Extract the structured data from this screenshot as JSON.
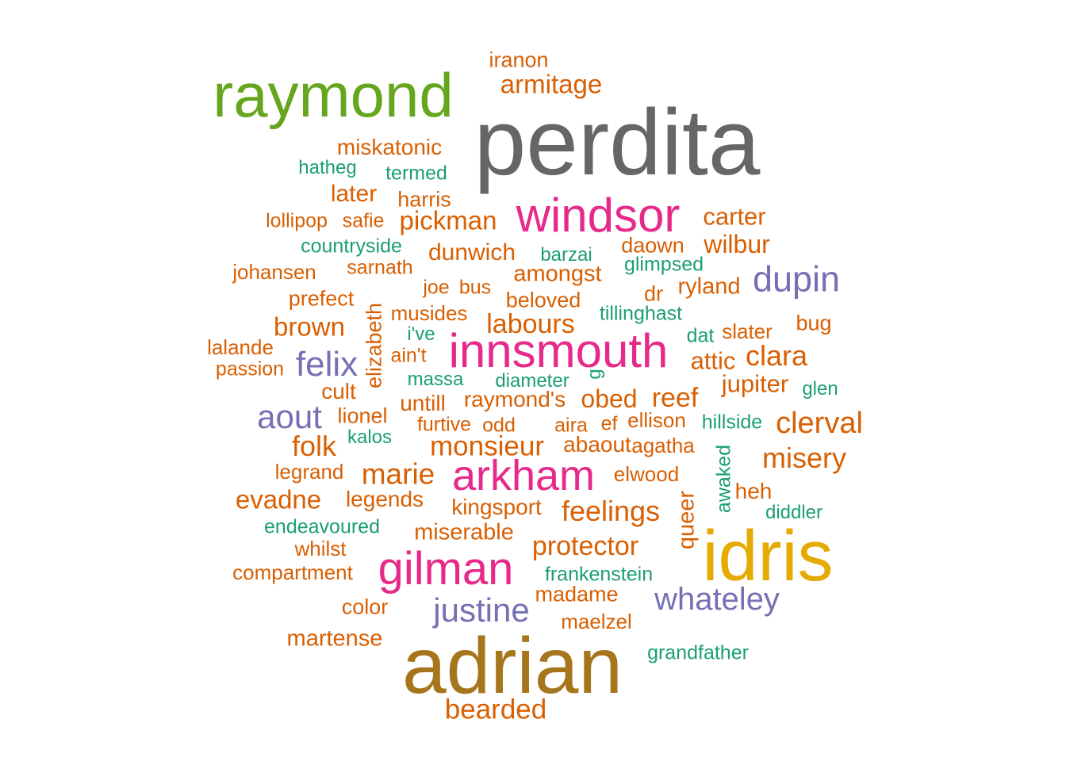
{
  "chart_data": {
    "type": "wordcloud",
    "colors": {
      "orange": "#d95f02",
      "teal": "#1b9e77",
      "purple": "#7570b3",
      "magenta": "#e7298a",
      "green": "#66a61e",
      "gold": "#e6ab02",
      "brown": "#a6761d",
      "gray": "#666666"
    },
    "words": [
      {
        "text": "perdita",
        "weight": 10,
        "color": "gray",
        "vertical": false
      },
      {
        "text": "adrian",
        "weight": 8.6,
        "color": "brown",
        "vertical": false
      },
      {
        "text": "idris",
        "weight": 8.1,
        "color": "gold",
        "vertical": false
      },
      {
        "text": "raymond",
        "weight": 7.5,
        "color": "green",
        "vertical": false
      },
      {
        "text": "windsor",
        "weight": 6.4,
        "color": "magenta",
        "vertical": false
      },
      {
        "text": "innsmouth",
        "weight": 6.4,
        "color": "magenta",
        "vertical": false
      },
      {
        "text": "gilman",
        "weight": 6.2,
        "color": "magenta",
        "vertical": false
      },
      {
        "text": "arkham",
        "weight": 5.8,
        "color": "magenta",
        "vertical": false
      },
      {
        "text": "dupin",
        "weight": 4.9,
        "color": "purple",
        "vertical": false
      },
      {
        "text": "felix",
        "weight": 4.8,
        "color": "purple",
        "vertical": false
      },
      {
        "text": "aout",
        "weight": 4.6,
        "color": "purple",
        "vertical": false
      },
      {
        "text": "justine",
        "weight": 4.6,
        "color": "purple",
        "vertical": false
      },
      {
        "text": "whateley",
        "weight": 4.3,
        "color": "purple",
        "vertical": false
      },
      {
        "text": "clerval",
        "weight": 4.1,
        "color": "orange",
        "vertical": false
      },
      {
        "text": "misery",
        "weight": 4.0,
        "color": "orange",
        "vertical": false
      },
      {
        "text": "folk",
        "weight": 4.0,
        "color": "orange",
        "vertical": false
      },
      {
        "text": "marie",
        "weight": 4.0,
        "color": "orange",
        "vertical": false
      },
      {
        "text": "clara",
        "weight": 3.9,
        "color": "orange",
        "vertical": false
      },
      {
        "text": "feelings",
        "weight": 3.9,
        "color": "orange",
        "vertical": false
      },
      {
        "text": "bearded",
        "weight": 3.8,
        "color": "orange",
        "vertical": false
      },
      {
        "text": "monsieur",
        "weight": 3.8,
        "color": "orange",
        "vertical": false
      },
      {
        "text": "protector",
        "weight": 3.7,
        "color": "orange",
        "vertical": false
      },
      {
        "text": "labours",
        "weight": 3.7,
        "color": "orange",
        "vertical": false
      },
      {
        "text": "reef",
        "weight": 3.7,
        "color": "orange",
        "vertical": false
      },
      {
        "text": "armitage",
        "weight": 3.6,
        "color": "orange",
        "vertical": false
      },
      {
        "text": "pickman",
        "weight": 3.6,
        "color": "orange",
        "vertical": false
      },
      {
        "text": "evadne",
        "weight": 3.6,
        "color": "orange",
        "vertical": false
      },
      {
        "text": "wilbur",
        "weight": 3.5,
        "color": "orange",
        "vertical": false
      },
      {
        "text": "brown",
        "weight": 3.5,
        "color": "orange",
        "vertical": false
      },
      {
        "text": "obed",
        "weight": 3.5,
        "color": "orange",
        "vertical": false
      },
      {
        "text": "carter",
        "weight": 3.4,
        "color": "orange",
        "vertical": false
      },
      {
        "text": "dunwich",
        "weight": 3.4,
        "color": "orange",
        "vertical": false
      },
      {
        "text": "jupiter",
        "weight": 3.4,
        "color": "orange",
        "vertical": false
      },
      {
        "text": "attic",
        "weight": 3.4,
        "color": "orange",
        "vertical": false
      },
      {
        "text": "later",
        "weight": 3.3,
        "color": "orange",
        "vertical": false
      },
      {
        "text": "amongst",
        "weight": 3.3,
        "color": "orange",
        "vertical": false
      },
      {
        "text": "ryland",
        "weight": 3.3,
        "color": "orange",
        "vertical": false
      },
      {
        "text": "martense",
        "weight": 3.3,
        "color": "orange",
        "vertical": false
      },
      {
        "text": "miserable",
        "weight": 3.3,
        "color": "orange",
        "vertical": false
      },
      {
        "text": "kingsport",
        "weight": 3.2,
        "color": "orange",
        "vertical": false
      },
      {
        "text": "legends",
        "weight": 3.2,
        "color": "orange",
        "vertical": false
      },
      {
        "text": "untill",
        "weight": 3.2,
        "color": "orange",
        "vertical": false
      },
      {
        "text": "raymond's",
        "weight": 3.2,
        "color": "orange",
        "vertical": false
      },
      {
        "text": "queer",
        "weight": 3.2,
        "color": "orange",
        "vertical": true
      },
      {
        "text": "iranon",
        "weight": 3.1,
        "color": "orange",
        "vertical": false
      },
      {
        "text": "miskatonic",
        "weight": 3.1,
        "color": "orange",
        "vertical": false
      },
      {
        "text": "prefect",
        "weight": 3.1,
        "color": "orange",
        "vertical": false
      },
      {
        "text": "cult",
        "weight": 3.1,
        "color": "orange",
        "vertical": false
      },
      {
        "text": "lionel",
        "weight": 3.1,
        "color": "orange",
        "vertical": false
      },
      {
        "text": "madame",
        "weight": 3.1,
        "color": "orange",
        "vertical": false
      },
      {
        "text": "color",
        "weight": 3.1,
        "color": "orange",
        "vertical": false
      },
      {
        "text": "abaout",
        "weight": 3.1,
        "color": "orange",
        "vertical": false
      },
      {
        "text": "heh",
        "weight": 3.1,
        "color": "orange",
        "vertical": false
      },
      {
        "text": "daown",
        "weight": 3.0,
        "color": "orange",
        "vertical": false
      },
      {
        "text": "harris",
        "weight": 3.0,
        "color": "orange",
        "vertical": false
      },
      {
        "text": "beloved",
        "weight": 3.0,
        "color": "orange",
        "vertical": false
      },
      {
        "text": "slater",
        "weight": 3.0,
        "color": "orange",
        "vertical": false
      },
      {
        "text": "bug",
        "weight": 3.0,
        "color": "orange",
        "vertical": false
      },
      {
        "text": "lalande",
        "weight": 3.0,
        "color": "orange",
        "vertical": false
      },
      {
        "text": "legrand",
        "weight": 3.0,
        "color": "orange",
        "vertical": false
      },
      {
        "text": "ellison",
        "weight": 3.0,
        "color": "orange",
        "vertical": false
      },
      {
        "text": "elwood",
        "weight": 3.0,
        "color": "orange",
        "vertical": false
      },
      {
        "text": "maelzel",
        "weight": 3.0,
        "color": "orange",
        "vertical": false
      },
      {
        "text": "compartment",
        "weight": 3.0,
        "color": "orange",
        "vertical": false
      },
      {
        "text": "whilst",
        "weight": 3.0,
        "color": "orange",
        "vertical": false
      },
      {
        "text": "agatha",
        "weight": 3.0,
        "color": "orange",
        "vertical": false
      },
      {
        "text": "dr",
        "weight": 3.0,
        "color": "orange",
        "vertical": false
      },
      {
        "text": "elizabeth",
        "weight": 3.0,
        "color": "orange",
        "vertical": true
      },
      {
        "text": "musides",
        "weight": 2.9,
        "color": "orange",
        "vertical": false
      },
      {
        "text": "furtive",
        "weight": 2.9,
        "color": "orange",
        "vertical": false
      },
      {
        "text": "odd",
        "weight": 2.9,
        "color": "orange",
        "vertical": false
      },
      {
        "text": "aira",
        "weight": 2.9,
        "color": "orange",
        "vertical": false
      },
      {
        "text": "ef",
        "weight": 2.9,
        "color": "orange",
        "vertical": false
      },
      {
        "text": "ain't",
        "weight": 2.9,
        "color": "orange",
        "vertical": false
      },
      {
        "text": "passion",
        "weight": 2.9,
        "color": "orange",
        "vertical": false
      },
      {
        "text": "lollipop",
        "weight": 2.9,
        "color": "orange",
        "vertical": false
      },
      {
        "text": "safie",
        "weight": 2.9,
        "color": "orange",
        "vertical": false
      },
      {
        "text": "sarnath",
        "weight": 2.9,
        "color": "orange",
        "vertical": false
      },
      {
        "text": "johansen",
        "weight": 2.9,
        "color": "orange",
        "vertical": false
      },
      {
        "text": "joe",
        "weight": 2.9,
        "color": "orange",
        "vertical": false
      },
      {
        "text": "bus",
        "weight": 2.9,
        "color": "orange",
        "vertical": false
      },
      {
        "text": "hatheg",
        "weight": 2.9,
        "color": "teal",
        "vertical": false
      },
      {
        "text": "termed",
        "weight": 2.9,
        "color": "teal",
        "vertical": false
      },
      {
        "text": "countryside",
        "weight": 2.9,
        "color": "teal",
        "vertical": false
      },
      {
        "text": "barzai",
        "weight": 2.9,
        "color": "teal",
        "vertical": false
      },
      {
        "text": "glimpsed",
        "weight": 2.9,
        "color": "teal",
        "vertical": false
      },
      {
        "text": "tillinghast",
        "weight": 2.9,
        "color": "teal",
        "vertical": false
      },
      {
        "text": "i've",
        "weight": 2.9,
        "color": "teal",
        "vertical": false
      },
      {
        "text": "dat",
        "weight": 2.9,
        "color": "teal",
        "vertical": false
      },
      {
        "text": "massa",
        "weight": 2.9,
        "color": "teal",
        "vertical": false
      },
      {
        "text": "diameter",
        "weight": 2.9,
        "color": "teal",
        "vertical": false
      },
      {
        "text": "g",
        "weight": 2.9,
        "color": "teal",
        "vertical": true
      },
      {
        "text": "glen",
        "weight": 2.9,
        "color": "teal",
        "vertical": false
      },
      {
        "text": "hillside",
        "weight": 2.9,
        "color": "teal",
        "vertical": false
      },
      {
        "text": "kalos",
        "weight": 2.9,
        "color": "teal",
        "vertical": false
      },
      {
        "text": "endeavoured",
        "weight": 2.9,
        "color": "teal",
        "vertical": false
      },
      {
        "text": "diddler",
        "weight": 2.9,
        "color": "teal",
        "vertical": false
      },
      {
        "text": "awaked",
        "weight": 2.9,
        "color": "teal",
        "vertical": true
      },
      {
        "text": "frankenstein",
        "weight": 2.9,
        "color": "teal",
        "vertical": false
      },
      {
        "text": "grandfather",
        "weight": 2.9,
        "color": "teal",
        "vertical": false
      }
    ]
  }
}
